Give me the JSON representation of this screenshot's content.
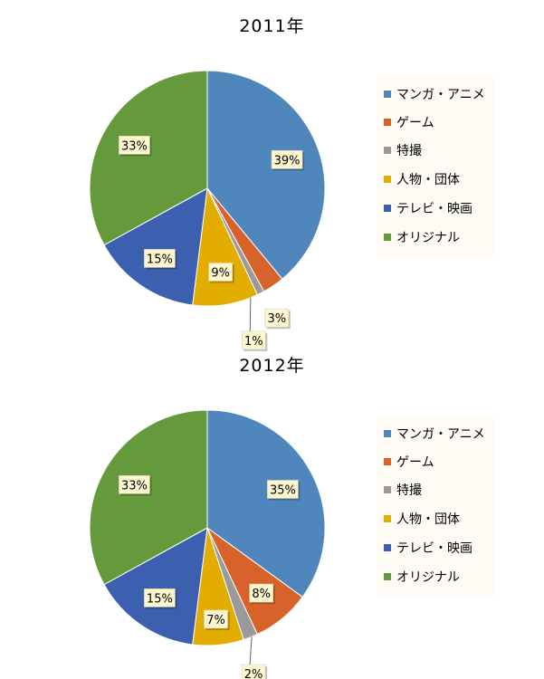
{
  "chart_data": [
    {
      "type": "pie",
      "title": "2011年",
      "categories": [
        "マンガ・アニメ",
        "ゲーム",
        "特撮",
        "人物・団体",
        "テレビ・映画",
        "オリジナル"
      ],
      "values": [
        39,
        3,
        1,
        9,
        15,
        33
      ],
      "labels": [
        "39%",
        "3%",
        "1%",
        "9%",
        "15%",
        "33%"
      ],
      "legend_position": "right"
    },
    {
      "type": "pie",
      "title": "2012年",
      "categories": [
        "マンガ・アニメ",
        "ゲーム",
        "特撮",
        "人物・団体",
        "テレビ・映画",
        "オリジナル"
      ],
      "values": [
        35,
        8,
        2,
        7,
        15,
        33
      ],
      "labels": [
        "35%",
        "8%",
        "2%",
        "7%",
        "15%",
        "33%"
      ],
      "legend_position": "right"
    }
  ],
  "colors": [
    "#4f87bd",
    "#d8632a",
    "#9a9a9a",
    "#e3ad00",
    "#3d5faf",
    "#659a3c"
  ],
  "label_box": {
    "fill": "#fdf6cf"
  }
}
